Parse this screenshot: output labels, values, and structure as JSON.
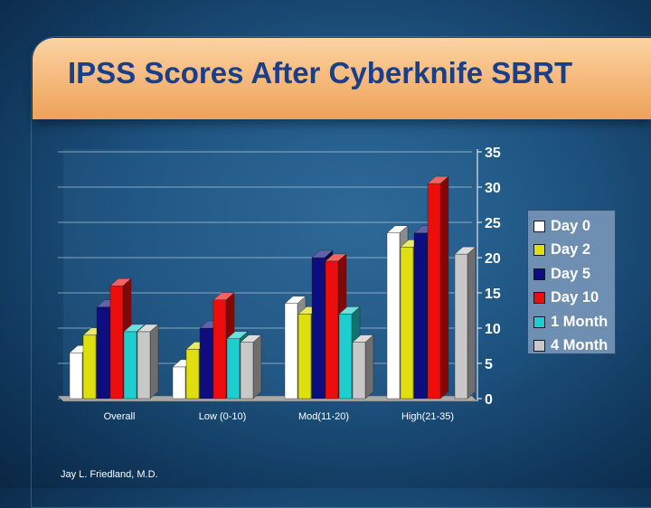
{
  "slide": {
    "title": "IPSS Scores After Cyberknife SBRT",
    "footer": "Jay L. Friedland, M.D."
  },
  "chart_data": {
    "type": "bar",
    "title": "",
    "xlabel": "",
    "ylabel": "",
    "categories": [
      "Overall",
      "Low (0-10)",
      "Mod(11-20)",
      "High(21-35)"
    ],
    "series": [
      {
        "name": "Day 0",
        "color": "#ffffff",
        "values": [
          6.5,
          4.5,
          13.5,
          23.5
        ]
      },
      {
        "name": "Day 2",
        "color": "#dede10",
        "values": [
          9,
          7,
          12,
          21.5
        ]
      },
      {
        "name": "Day 5",
        "color": "#0d0d80",
        "values": [
          13,
          10,
          20,
          23.5
        ]
      },
      {
        "name": "Day 10",
        "color": "#ee0d0d",
        "values": [
          16,
          14,
          19.5,
          30.5
        ]
      },
      {
        "name": "1 Month",
        "color": "#1ecdcd",
        "values": [
          9.5,
          8.5,
          12,
          null
        ]
      },
      {
        "name": "4 Month",
        "color": "#c8c8c8",
        "values": [
          9.5,
          8,
          8,
          20.5
        ]
      }
    ],
    "ylim": [
      0,
      35
    ],
    "yticks": [
      0,
      5,
      10,
      15,
      20,
      25,
      30,
      35
    ],
    "y_axis_side": "right",
    "grid": true,
    "legend_position": "right"
  }
}
